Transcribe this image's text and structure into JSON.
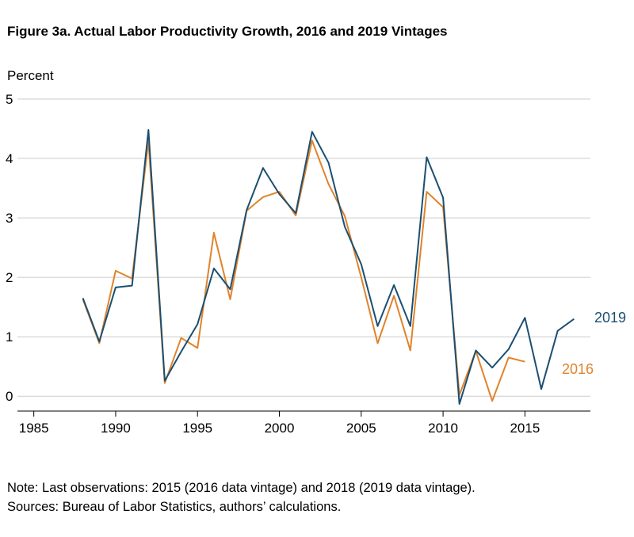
{
  "title": "Figure 3a. Actual Labor Productivity Growth, 2016 and 2019 Vintages",
  "notes": [
    "Note: Last observations: 2015 (2016 data vintage) and 2018 (2019 data vintage).",
    "Sources: Bureau of Labor Statistics, authors’ calculations."
  ],
  "colors": {
    "v2019": "#1b4f72",
    "v2016": "#e0832b",
    "grid": "#cccccc"
  },
  "chart_data": {
    "type": "line",
    "ylabel": "Percent",
    "xlim": [
      1984,
      2019
    ],
    "ylim": [
      -0.25,
      5
    ],
    "xticks": [
      1985,
      1990,
      1995,
      2000,
      2005,
      2010,
      2015
    ],
    "yticks": [
      0,
      1,
      2,
      3,
      4,
      5
    ],
    "grid": "horizontal",
    "series": [
      {
        "name": "2019",
        "x": [
          1988,
          1989,
          1990,
          1991,
          1992,
          1993,
          1994,
          1995,
          1996,
          1997,
          1998,
          1999,
          2000,
          2001,
          2002,
          2003,
          2004,
          2005,
          2006,
          2007,
          2008,
          2009,
          2010,
          2011,
          2012,
          2013,
          2014,
          2015,
          2016,
          2017,
          2018
        ],
        "values": [
          1.65,
          0.92,
          1.83,
          1.86,
          4.48,
          0.26,
          0.75,
          1.21,
          2.15,
          1.8,
          3.13,
          3.84,
          3.4,
          3.08,
          4.45,
          3.93,
          2.85,
          2.22,
          1.18,
          1.87,
          1.18,
          4.02,
          3.34,
          -0.13,
          0.77,
          0.48,
          0.79,
          1.32,
          0.12,
          1.1,
          1.3
        ]
      },
      {
        "name": "2016",
        "x": [
          1988,
          1989,
          1990,
          1991,
          1992,
          1993,
          1994,
          1995,
          1996,
          1997,
          1998,
          1999,
          2000,
          2001,
          2002,
          2003,
          2004,
          2005,
          2006,
          2007,
          2008,
          2009,
          2010,
          2011,
          2012,
          2013,
          2014,
          2015
        ],
        "values": [
          1.63,
          0.89,
          2.11,
          1.98,
          4.29,
          0.22,
          0.98,
          0.81,
          2.75,
          1.63,
          3.12,
          3.35,
          3.44,
          3.04,
          4.3,
          3.57,
          3.03,
          2.0,
          0.89,
          1.69,
          0.77,
          3.44,
          3.18,
          0.02,
          0.76,
          -0.08,
          0.65,
          0.58
        ]
      }
    ]
  }
}
